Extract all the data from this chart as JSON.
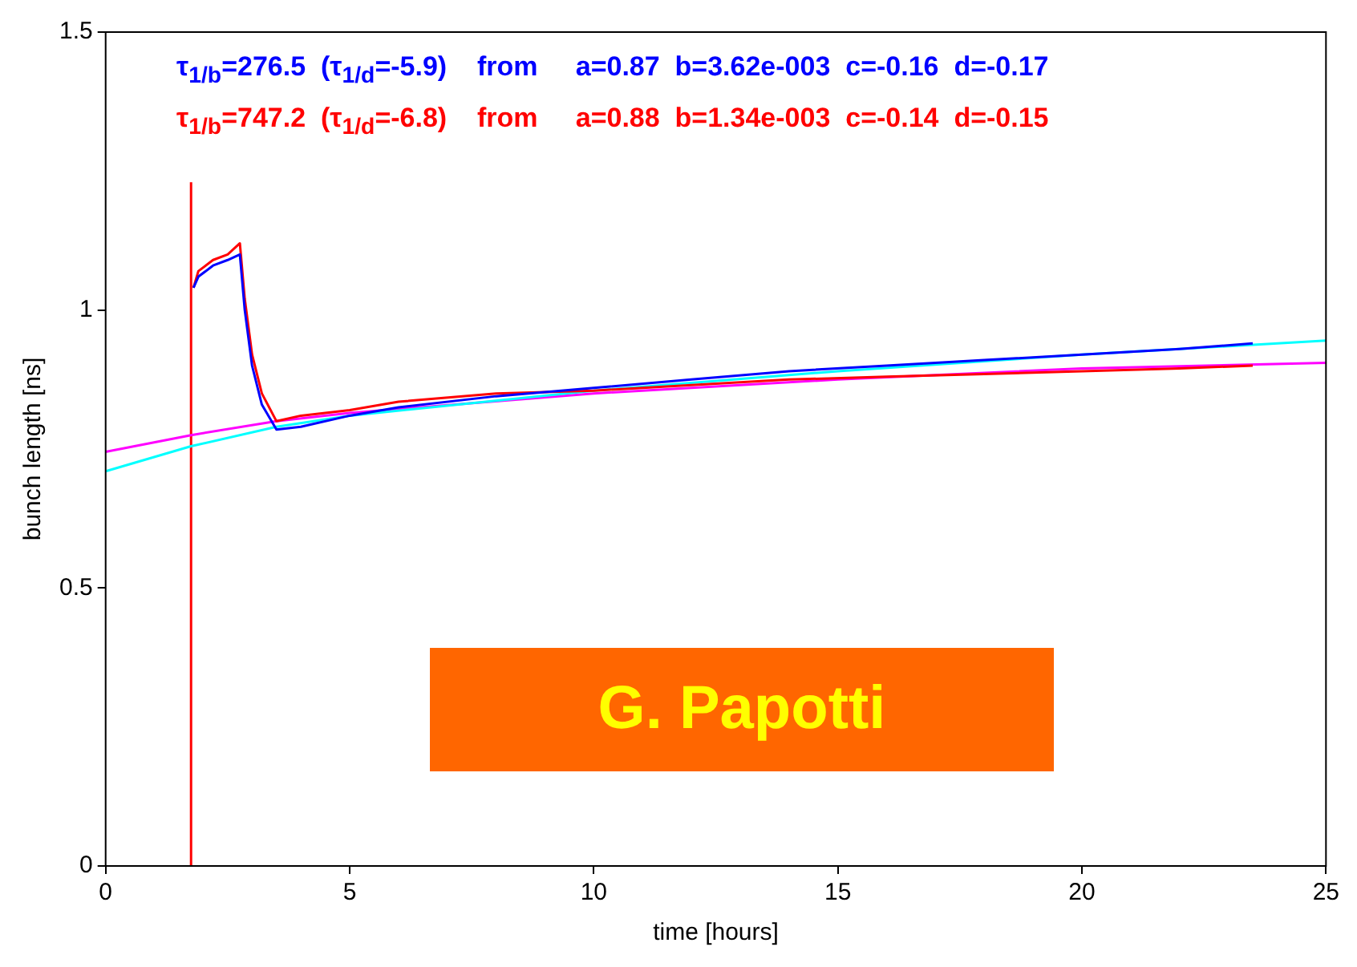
{
  "chart_data": {
    "type": "line",
    "xlabel": "time [hours]",
    "ylabel": "bunch length [ns]",
    "xlim": [
      0,
      25
    ],
    "ylim": [
      0,
      1.5
    ],
    "xticks": [
      0,
      5,
      10,
      15,
      20,
      25
    ],
    "yticks": [
      0,
      0.5,
      1,
      1.5
    ],
    "annotations": [
      "τ$_{1/b}$=276.5  (τ$_{1/d}$=-5.9)    from     a=0.87  b=3.62e-003  c=-0.16  d=-0.17",
      "τ$_{1/b}$=747.2  (τ$_{1/d}$=-6.8)    from     a=0.88  b=1.34e-003  c=-0.14  d=-0.15",
      "G. Papotti"
    ],
    "series": [
      {
        "color": "#0000ff",
        "x": [
          1.8,
          1.9,
          2.2,
          2.5,
          2.75,
          2.85,
          3.0,
          3.2,
          3.5,
          4,
          5,
          6,
          8,
          10,
          12,
          14,
          16,
          18,
          20,
          22,
          23.5
        ],
        "values": [
          1.04,
          1.06,
          1.08,
          1.09,
          1.1,
          1.0,
          0.9,
          0.83,
          0.785,
          0.79,
          0.81,
          0.825,
          0.845,
          0.86,
          0.875,
          0.89,
          0.9,
          0.91,
          0.92,
          0.93,
          0.94
        ]
      },
      {
        "color": "#ff0000",
        "x": [
          1.8,
          1.9,
          2.2,
          2.5,
          2.75,
          2.85,
          3.0,
          3.2,
          3.5,
          4,
          5,
          6,
          8,
          10,
          12,
          14,
          16,
          18,
          20,
          22,
          23.5
        ],
        "values": [
          1.04,
          1.07,
          1.09,
          1.1,
          1.12,
          1.02,
          0.92,
          0.85,
          0.8,
          0.81,
          0.82,
          0.835,
          0.85,
          0.855,
          0.865,
          0.875,
          0.88,
          0.885,
          0.89,
          0.895,
          0.9
        ]
      },
      {
        "color": "#00ffff",
        "x": [
          0,
          1.75,
          3.5,
          5,
          10,
          15,
          20,
          25
        ],
        "values": [
          0.71,
          0.755,
          0.79,
          0.81,
          0.855,
          0.89,
          0.92,
          0.945
        ]
      },
      {
        "color": "#ff00ff",
        "x": [
          0,
          1.75,
          3.5,
          5,
          10,
          15,
          20,
          25
        ],
        "values": [
          0.745,
          0.775,
          0.8,
          0.815,
          0.85,
          0.875,
          0.895,
          0.905
        ]
      },
      {
        "color": "#ff0000",
        "x": [
          1.75,
          1.75
        ],
        "values": [
          0,
          1.23
        ]
      }
    ]
  }
}
